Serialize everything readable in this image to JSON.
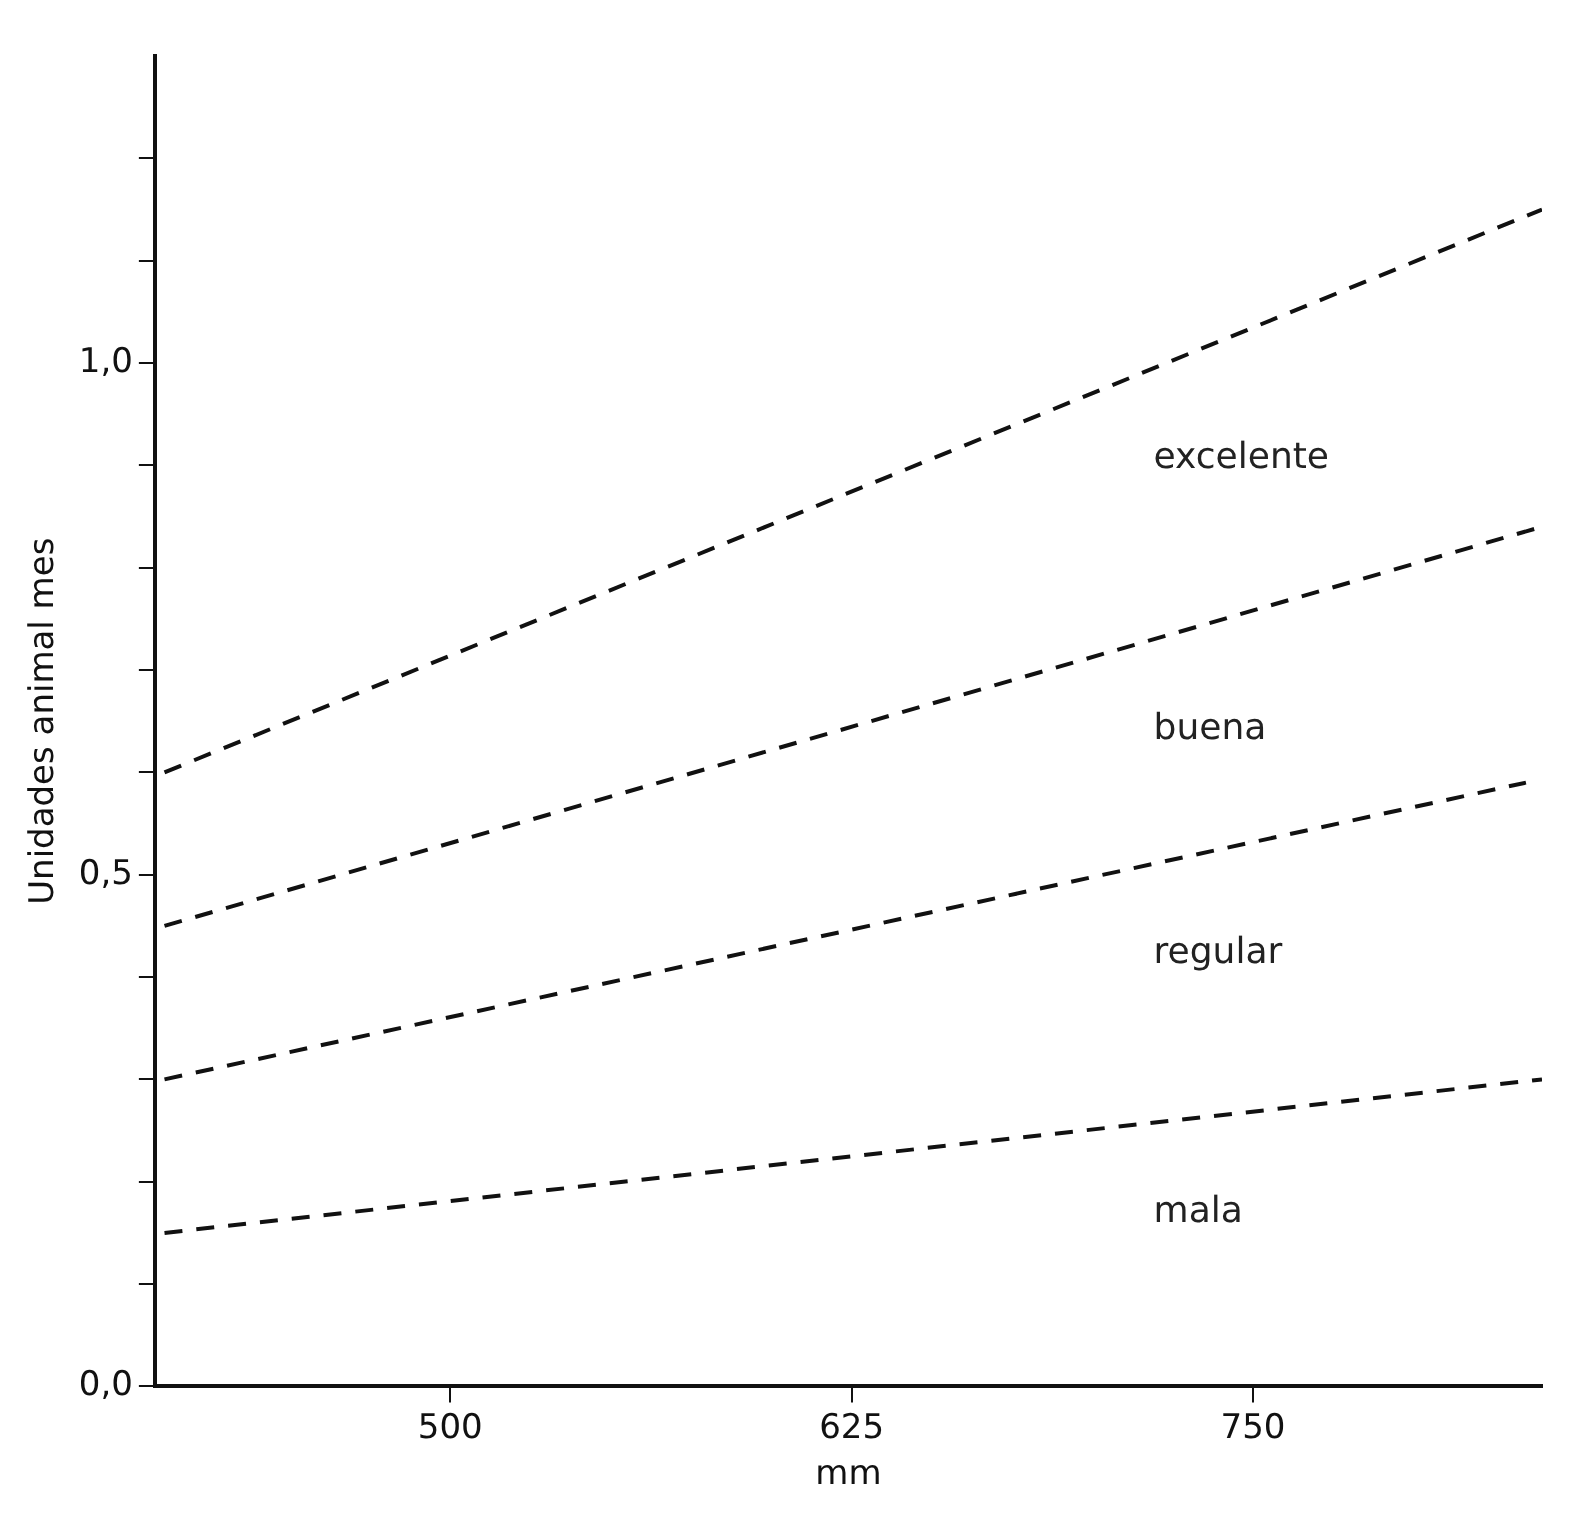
{
  "chart_data": {
    "type": "line",
    "xlabel": "mm",
    "ylabel": "Unidades animal mes",
    "xlim": [
      408,
      840
    ],
    "xticks": [
      500,
      625,
      750
    ],
    "ylim": [
      0,
      1.3
    ],
    "yticks": [
      {
        "value": 0,
        "label": "0,0"
      },
      {
        "value": 0.1,
        "label": null
      },
      {
        "value": 0.2,
        "label": null
      },
      {
        "value": 0.3,
        "label": null
      },
      {
        "value": 0.4,
        "label": null
      },
      {
        "value": 0.5,
        "label": "0,5"
      },
      {
        "value": 0.6,
        "label": null
      },
      {
        "value": 0.7,
        "label": null
      },
      {
        "value": 0.8,
        "label": null
      },
      {
        "value": 0.9,
        "label": null
      },
      {
        "value": 1,
        "label": "1,0"
      },
      {
        "value": 1.1,
        "label": null
      },
      {
        "value": 1.2,
        "label": null
      }
    ],
    "grid": false,
    "legend": false,
    "marker": "none",
    "line_style": "dashed",
    "series": [
      {
        "name": "excelente",
        "color": "#111111",
        "x": [
          411,
          840
        ],
        "values": [
          0.6,
          1.15
        ]
      },
      {
        "name": "buena",
        "color": "#111111",
        "x": [
          411,
          840
        ],
        "values": [
          0.45,
          0.84
        ]
      },
      {
        "name": "regular",
        "color": "#111111",
        "x": [
          411,
          835
        ],
        "values": [
          0.3,
          0.59
        ]
      },
      {
        "name": "mala",
        "color": "#111111",
        "x": [
          411,
          840
        ],
        "values": [
          0.15,
          0.3
        ]
      }
    ]
  }
}
